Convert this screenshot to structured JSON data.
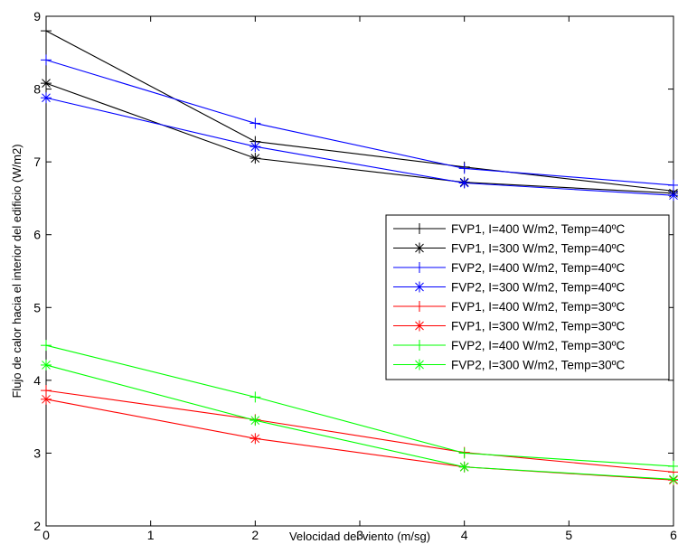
{
  "chart_data": {
    "type": "line",
    "xlabel": "Velocidad del viento (m/sg)",
    "ylabel": "Flujo de calor hacia el interior del edificio (W/m2)",
    "xlim": [
      0,
      6
    ],
    "ylim": [
      2,
      9
    ],
    "xticks": [
      0,
      1,
      2,
      3,
      4,
      5,
      6
    ],
    "yticks": [
      2,
      3,
      4,
      5,
      6,
      7,
      8,
      9
    ],
    "grid": false,
    "legend_position": "right",
    "x": [
      0,
      2,
      4,
      6
    ],
    "series": [
      {
        "name": "FVP1, I=400 W/m2, Temp=40ºC",
        "marker": "plus",
        "color": "#000000",
        "values": [
          8.8,
          7.28,
          6.93,
          6.6
        ]
      },
      {
        "name": "FVP1, I=300 W/m2, Temp=40ºC",
        "marker": "star",
        "color": "#000000",
        "values": [
          8.08,
          7.05,
          6.72,
          6.57
        ]
      },
      {
        "name": "FVP2, I=400 W/m2, Temp=40ºC",
        "marker": "plus",
        "color": "#0000ff",
        "values": [
          8.4,
          7.53,
          6.91,
          6.68
        ]
      },
      {
        "name": "FVP2, I=300 W/m2, Temp=40ºC",
        "marker": "star",
        "color": "#0000ff",
        "values": [
          7.88,
          7.21,
          6.71,
          6.54
        ]
      },
      {
        "name": "FVP1, I=400 W/m2, Temp=30ºC",
        "marker": "plus",
        "color": "#ff0000",
        "values": [
          3.86,
          3.46,
          3.01,
          2.74
        ]
      },
      {
        "name": "FVP1, I=300 W/m2, Temp=30ºC",
        "marker": "star",
        "color": "#ff0000",
        "values": [
          3.74,
          3.2,
          2.81,
          2.63
        ]
      },
      {
        "name": "FVP2, I=400 W/m2, Temp=30ºC",
        "marker": "plus",
        "color": "#00ff00",
        "values": [
          4.48,
          3.77,
          3.0,
          2.82
        ]
      },
      {
        "name": "FVP2, I=300 W/m2, Temp=30ºC",
        "marker": "star",
        "color": "#00ff00",
        "values": [
          4.21,
          3.45,
          2.81,
          2.64
        ]
      }
    ]
  }
}
